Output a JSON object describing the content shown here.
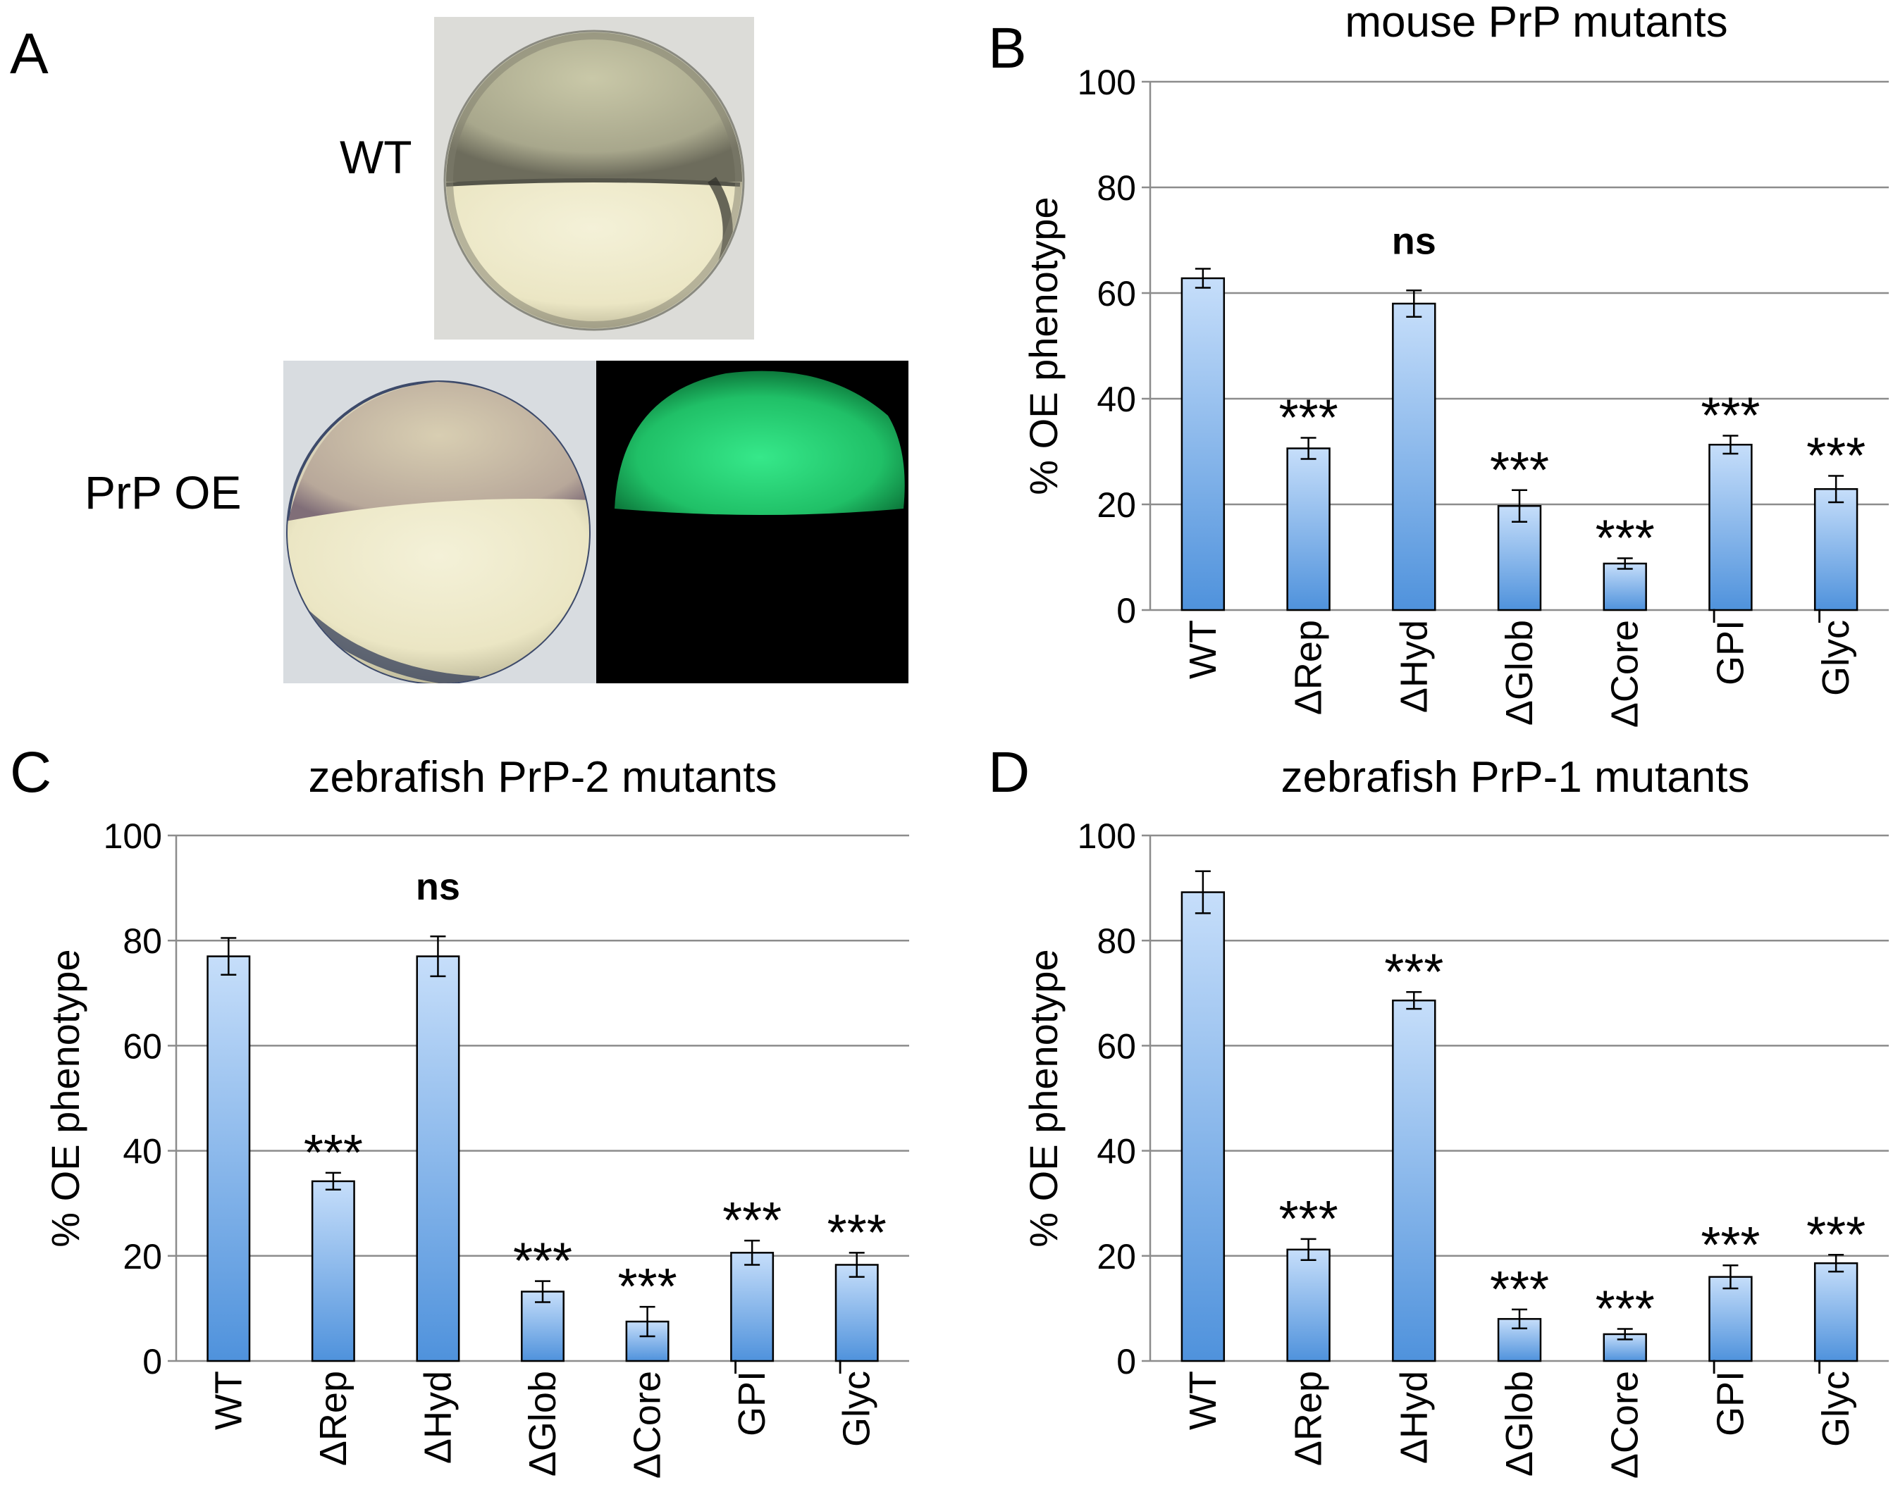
{
  "panels": {
    "A": {
      "letter": "A",
      "wt_label": "WT",
      "oe_label": "PrP OE"
    }
  },
  "chart_data": [
    {
      "panel": "B",
      "letter": "B",
      "type": "bar",
      "title": "mouse PrP mutants",
      "ylabel": "% OE phenotype",
      "ylim": [
        0,
        100
      ],
      "yticks": [
        "0",
        "20",
        "40",
        "60",
        "80",
        "100"
      ],
      "grid": true,
      "categories": [
        "WT",
        "ΔRep",
        "ΔHyd",
        "ΔGlob",
        "ΔCore",
        "GPI",
        "Glyc"
      ],
      "values": [
        62.8,
        30.6,
        58.0,
        19.7,
        8.8,
        31.3,
        22.9
      ],
      "errors": [
        1.8,
        2.0,
        2.5,
        3.0,
        1.0,
        1.7,
        2.5
      ],
      "annotations": [
        "",
        "***",
        "ns",
        "***",
        "***",
        "***",
        "***"
      ],
      "colors": {
        "bar_top": "#c6defa",
        "bar_bottom": "#4f92dc",
        "edge": "#000000",
        "grid": "#8c8c8c"
      }
    },
    {
      "panel": "C",
      "letter": "C",
      "type": "bar",
      "title": "zebrafish PrP-2 mutants",
      "ylabel": "% OE phenotype",
      "ylim": [
        0,
        100
      ],
      "yticks": [
        "0",
        "20",
        "40",
        "60",
        "80",
        "100"
      ],
      "grid": true,
      "categories": [
        "WT",
        "ΔRep",
        "ΔHyd",
        "ΔGlob",
        "ΔCore",
        "GPI",
        "Glyc"
      ],
      "values": [
        77.0,
        34.2,
        77.0,
        13.2,
        7.5,
        20.6,
        18.3
      ],
      "errors": [
        3.5,
        1.6,
        3.8,
        2.0,
        2.8,
        2.3,
        2.3
      ],
      "annotations": [
        "",
        "***",
        "ns",
        "***",
        "***",
        "***",
        "***"
      ],
      "colors": {
        "bar_top": "#c6defa",
        "bar_bottom": "#4f92dc",
        "edge": "#000000",
        "grid": "#8c8c8c"
      }
    },
    {
      "panel": "D",
      "letter": "D",
      "type": "bar",
      "title": "zebrafish PrP-1 mutants",
      "ylabel": "% OE phenotype",
      "ylim": [
        0,
        100
      ],
      "yticks": [
        "0",
        "20",
        "40",
        "60",
        "80",
        "100"
      ],
      "grid": true,
      "categories": [
        "WT",
        "ΔRep",
        "ΔHyd",
        "ΔGlob",
        "ΔCore",
        "GPI",
        "Glyc"
      ],
      "values": [
        89.2,
        21.2,
        68.6,
        8.0,
        5.1,
        16.0,
        18.6
      ],
      "errors": [
        4.0,
        2.0,
        1.6,
        1.8,
        1.0,
        2.2,
        1.6
      ],
      "annotations": [
        "",
        "***",
        "***",
        "***",
        "***",
        "***",
        "***"
      ],
      "colors": {
        "bar_top": "#c6defa",
        "bar_bottom": "#4f92dc",
        "edge": "#000000",
        "grid": "#8c8c8c"
      }
    }
  ]
}
